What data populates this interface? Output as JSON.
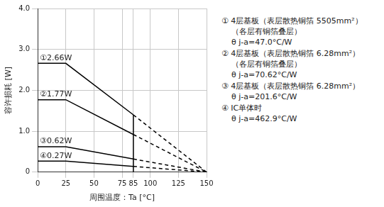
{
  "chart_data": {
    "type": "line",
    "x_label": "周围温度：Ta [°C]",
    "y_label": "容许损耗 [W]",
    "xlim": [
      0,
      150
    ],
    "xticks": [
      0,
      25,
      50,
      75,
      85,
      100,
      125,
      150
    ],
    "ylim": [
      0,
      4
    ],
    "yticks": [
      0,
      {
        "value": 1,
        "label": "1.0"
      },
      {
        "value": 2,
        "label": "2.0"
      },
      {
        "value": 3,
        "label": "3.0"
      },
      {
        "value": 4,
        "label": "4.0"
      }
    ],
    "grid": true,
    "color": "#000000",
    "series": [
      {
        "name": "①2.66W",
        "line_style": "solid",
        "x": [
          0,
          25,
          85
        ],
        "values": [
          2.66,
          2.66,
          1.4
        ]
      },
      {
        "line_style": "dashed",
        "x": [
          85,
          150
        ],
        "values": [
          1.4,
          0
        ]
      },
      {
        "name": "②1.77W",
        "line_style": "solid",
        "x": [
          0,
          25,
          85
        ],
        "values": [
          1.77,
          1.77,
          0.92
        ]
      },
      {
        "line_style": "dashed",
        "x": [
          85,
          150
        ],
        "values": [
          0.92,
          0
        ]
      },
      {
        "name": "③0.62W",
        "line_style": "solid",
        "x": [
          0,
          25,
          85
        ],
        "values": [
          0.62,
          0.62,
          0.32
        ]
      },
      {
        "line_style": "dashed",
        "x": [
          85,
          150
        ],
        "values": [
          0.32,
          0
        ]
      },
      {
        "name": "④0.27W",
        "line_style": "solid",
        "x": [
          0,
          25,
          85
        ],
        "values": [
          0.27,
          0.27,
          0.14
        ]
      },
      {
        "line_style": "dashed",
        "x": [
          85,
          150
        ],
        "values": [
          0.14,
          0
        ]
      },
      {
        "line_style": "solid",
        "x": [
          85,
          85
        ],
        "values": [
          0,
          1.4
        ]
      }
    ],
    "notes": [
      [
        "① 4层基板（表层散热铜箔 5505mm²）",
        "（各层有铜箔叠层）",
        "θ j-a=47.0°C/W"
      ],
      [
        "② 4层基板（表层散热铜箔 6.28mm²）",
        "（各层有铜箔叠层）",
        "θ j-a=70.62°C/W"
      ],
      [
        "③ 4层基板（表层散热铜箔 6.28mm²）",
        "θ j-a=201.6°C/W"
      ],
      [
        "④ IC单体时",
        "θ j-a=462.9°C/W"
      ]
    ]
  }
}
